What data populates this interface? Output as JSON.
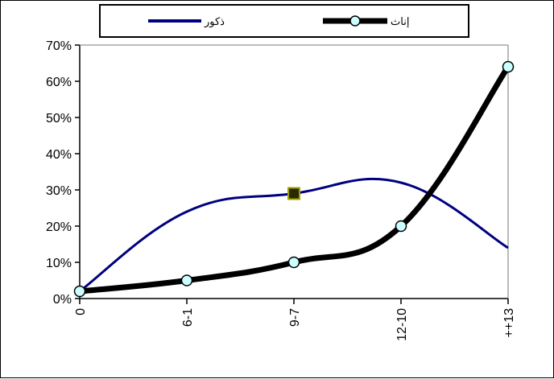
{
  "chart_data": {
    "type": "line",
    "categories": [
      "0",
      "6-1",
      "9-7",
      "12-10",
      "++13"
    ],
    "y_ticks": [
      "0%",
      "10%",
      "20%",
      "30%",
      "40%",
      "50%",
      "60%",
      "70%"
    ],
    "ylim": [
      0,
      70
    ],
    "grid": false,
    "legend_position": "top",
    "series": [
      {
        "name": "ذكور",
        "values": [
          2,
          24,
          29,
          32,
          14
        ],
        "color": "#00007f"
      },
      {
        "name": "إناث",
        "values": [
          2,
          5,
          10,
          20,
          64
        ],
        "color": "#000000",
        "marker": "#ccffff"
      }
    ]
  }
}
